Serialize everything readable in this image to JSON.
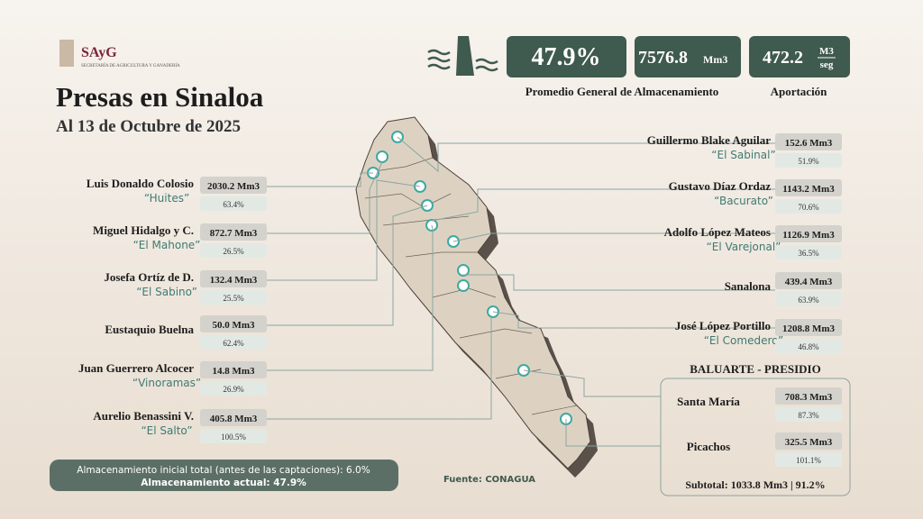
{
  "logo": {
    "acronym": "SAyG",
    "agency": "SECRETARÍA DE AGRICULTURA Y GANADERÍA"
  },
  "header": {
    "title": "Presas en Sinaloa",
    "subtitle": "Al 13 de Octubre de 2025"
  },
  "stats": {
    "average": "47.9%",
    "volume": "7576.8",
    "volume_unit": "Mm3",
    "inflow": "472.2",
    "inflow_unit_top": "M3",
    "inflow_unit_bottom": "seg",
    "average_label": "Promedio General de Almacenamiento",
    "inflow_label": "Aportación"
  },
  "left_dams": [
    {
      "name": "Luis Donaldo Colosio",
      "alias": "“Huites”",
      "volume": "2030.2 Mm3",
      "percent": "63.4%"
    },
    {
      "name": "Miguel Hidalgo y C.",
      "alias": "“El Mahone”",
      "volume": "872.7 Mm3",
      "percent": "26.5%"
    },
    {
      "name": "Josefa Ortíz de D.",
      "alias": "“El Sabino”",
      "volume": "132.4 Mm3",
      "percent": "25.5%"
    },
    {
      "name": "Eustaquio Buelna",
      "volume": "50.0 Mm3",
      "percent": "62.4%"
    },
    {
      "name": "Juan Guerrero Alcocer",
      "alias": "“Vinoramas”",
      "volume": "14.8 Mm3",
      "percent": "26.9%"
    },
    {
      "name": "Aurelio Benassini V.",
      "alias": "“El Salto”",
      "volume": "405.8 Mm3",
      "percent": "100.5%"
    }
  ],
  "right_dams": [
    {
      "name": "Guillermo Blake Aguilar",
      "alias": "“El Sabinal”",
      "volume": "152.6 Mm3",
      "percent": "51.9%"
    },
    {
      "name": "Gustavo Díaz Ordaz",
      "alias": "“Bacurato”",
      "volume": "1143.2 Mm3",
      "percent": "70.6%"
    },
    {
      "name": "Adolfo López Mateos",
      "alias": "“El Varejonal”",
      "volume": "1126.9 Mm3",
      "percent": "36.5%"
    },
    {
      "name": "Sanalona",
      "volume": "439.4 Mm3",
      "percent": "63.9%"
    },
    {
      "name": "José López Portillo",
      "alias": "“El Comedero”",
      "volume": "1208.8 Mm3",
      "percent": "46.8%"
    }
  ],
  "baluarte": {
    "title": "BALUARTE - PRESIDIO",
    "dams": [
      {
        "name": "Santa María",
        "volume": "708.3 Mm3",
        "percent": "87.3%"
      },
      {
        "name": "Picachos",
        "volume": "325.5 Mm3",
        "percent": "101.1%"
      }
    ],
    "subtotal": "Subtotal: 1033.8 Mm3 | 91.2%"
  },
  "footer": {
    "initial": "Almacenamiento inicial total (antes de las captaciones): 6.0%",
    "current": "Almacenamiento actual: 47.9%",
    "source": "Fuente: CONAGUA"
  }
}
